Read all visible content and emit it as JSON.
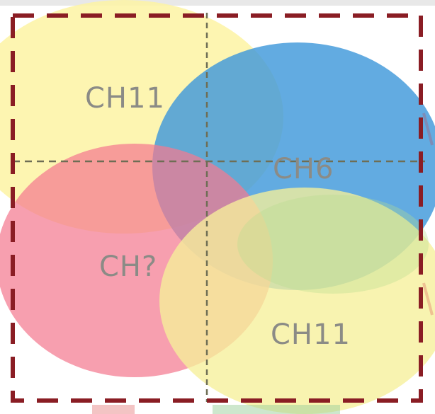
{
  "diagram": {
    "labels": {
      "ch11_top": "CH11",
      "ch6": "CH6",
      "ch_unknown": "CH?",
      "ch11_bottom": "CH11"
    }
  },
  "colors": {
    "yellow": "#fcf2a0",
    "blue": "#4aa0dc",
    "pink": "#f47e92",
    "green": "#c8e6a0",
    "outer_border": "#8b1c22",
    "divider": "#7a7a5a"
  }
}
